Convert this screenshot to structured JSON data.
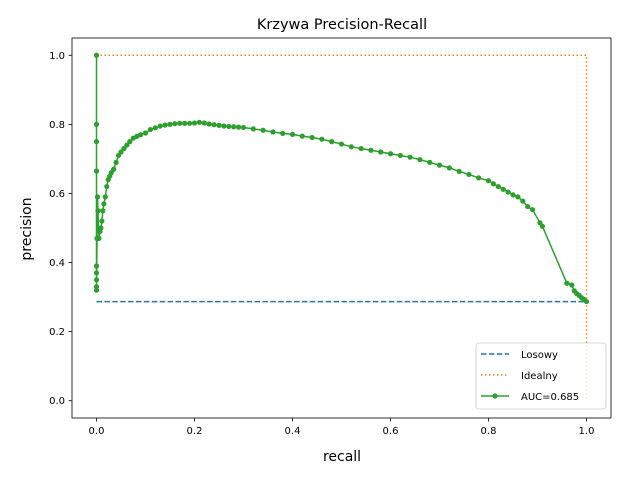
{
  "chart_data": {
    "type": "line",
    "title": "Krzywa Precision-Recall",
    "xlabel": "recall",
    "ylabel": "precision",
    "xlim": [
      -0.05,
      1.05
    ],
    "ylim": [
      -0.05,
      1.05
    ],
    "xticks": [
      0.0,
      0.2,
      0.4,
      0.6,
      0.8,
      1.0
    ],
    "yticks": [
      0.0,
      0.2,
      0.4,
      0.6,
      0.8,
      1.0
    ],
    "xtick_labels": [
      "0.0",
      "0.2",
      "0.4",
      "0.6",
      "0.8",
      "1.0"
    ],
    "ytick_labels": [
      "0.0",
      "0.2",
      "0.4",
      "0.6",
      "0.8",
      "1.0"
    ],
    "grid": false,
    "legend_position": "bottom-right",
    "series": [
      {
        "name": "Losowy",
        "style": "dashed",
        "color": "#1f77b4",
        "x": [
          0.0,
          1.0
        ],
        "y": [
          0.287,
          0.287
        ]
      },
      {
        "name": "Idealny",
        "style": "dotted",
        "color": "#ff7f0e",
        "x": [
          0.0,
          1.0,
          1.0
        ],
        "y": [
          1.0,
          1.0,
          0.0
        ]
      },
      {
        "name": "AUC=0.685",
        "style": "solid-markers",
        "color": "#2ca02c",
        "x": [
          0.0,
          0.0,
          0.0,
          0.0,
          0.0,
          0.0,
          0.0,
          0.0,
          0.0,
          0.001,
          0.002,
          0.003,
          0.004,
          0.005,
          0.007,
          0.009,
          0.011,
          0.013,
          0.015,
          0.018,
          0.021,
          0.024,
          0.027,
          0.03,
          0.035,
          0.04,
          0.045,
          0.05,
          0.056,
          0.062,
          0.068,
          0.075,
          0.082,
          0.09,
          0.1,
          0.11,
          0.12,
          0.13,
          0.14,
          0.15,
          0.16,
          0.17,
          0.18,
          0.19,
          0.2,
          0.21,
          0.22,
          0.23,
          0.24,
          0.25,
          0.26,
          0.27,
          0.28,
          0.29,
          0.3,
          0.32,
          0.34,
          0.36,
          0.38,
          0.4,
          0.42,
          0.44,
          0.46,
          0.48,
          0.5,
          0.52,
          0.54,
          0.56,
          0.58,
          0.6,
          0.62,
          0.64,
          0.66,
          0.68,
          0.7,
          0.72,
          0.74,
          0.76,
          0.78,
          0.8,
          0.81,
          0.82,
          0.83,
          0.84,
          0.85,
          0.86,
          0.87,
          0.88,
          0.89,
          0.905,
          0.91,
          0.96,
          0.97,
          0.975,
          0.98,
          0.985,
          0.99,
          0.995,
          1.0
        ],
        "y": [
          1.0,
          0.8,
          0.75,
          0.665,
          0.39,
          0.37,
          0.35,
          0.33,
          0.32,
          0.47,
          0.59,
          0.55,
          0.5,
          0.47,
          0.49,
          0.5,
          0.52,
          0.55,
          0.57,
          0.59,
          0.62,
          0.64,
          0.65,
          0.66,
          0.67,
          0.69,
          0.71,
          0.72,
          0.73,
          0.74,
          0.75,
          0.76,
          0.765,
          0.77,
          0.775,
          0.785,
          0.79,
          0.795,
          0.798,
          0.8,
          0.802,
          0.803,
          0.803,
          0.803,
          0.804,
          0.806,
          0.804,
          0.801,
          0.799,
          0.797,
          0.795,
          0.794,
          0.793,
          0.792,
          0.791,
          0.787,
          0.783,
          0.778,
          0.774,
          0.771,
          0.766,
          0.762,
          0.757,
          0.75,
          0.743,
          0.735,
          0.73,
          0.725,
          0.72,
          0.715,
          0.71,
          0.705,
          0.698,
          0.69,
          0.682,
          0.674,
          0.664,
          0.655,
          0.645,
          0.637,
          0.628,
          0.62,
          0.612,
          0.604,
          0.596,
          0.59,
          0.578,
          0.562,
          0.553,
          0.515,
          0.505,
          0.34,
          0.335,
          0.318,
          0.31,
          0.305,
          0.298,
          0.293,
          0.287
        ]
      }
    ]
  }
}
